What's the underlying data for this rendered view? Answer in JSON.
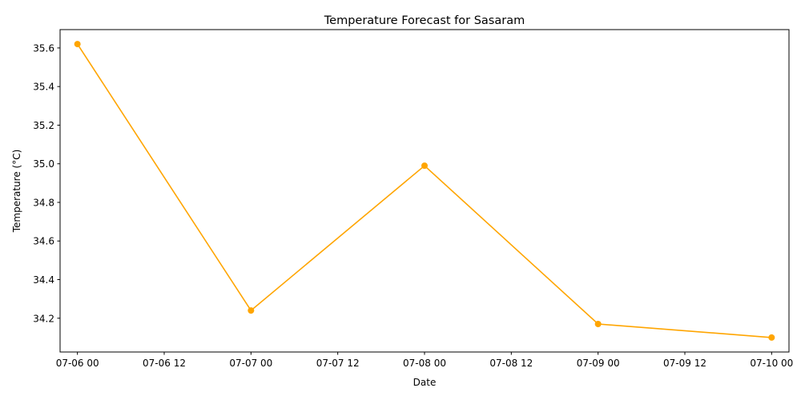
{
  "chart_data": {
    "type": "line",
    "title": "Temperature Forecast for Sasaram",
    "xlabel": "Date",
    "ylabel": "Temperature (°C)",
    "x_tick_labels": [
      "07-06 00",
      "07-06 12",
      "07-07 00",
      "07-07 12",
      "07-08 00",
      "07-08 12",
      "07-09 00",
      "07-09 12",
      "07-10 00"
    ],
    "y_tick_labels": [
      "34.2",
      "34.4",
      "34.6",
      "34.8",
      "35.0",
      "35.2",
      "35.4",
      "35.6"
    ],
    "xlim": [
      "07-05 21:36",
      "07-10 02:24"
    ],
    "ylim": [
      34.025,
      35.695
    ],
    "grid": false,
    "series": [
      {
        "color": "#ffa500",
        "marker": "circle",
        "points": [
          {
            "x": "07-06 00",
            "y": 35.62
          },
          {
            "x": "07-07 00",
            "y": 34.24
          },
          {
            "x": "07-08 00",
            "y": 34.99
          },
          {
            "x": "07-09 00",
            "y": 34.17
          },
          {
            "x": "07-10 00",
            "y": 34.1
          }
        ]
      }
    ]
  }
}
